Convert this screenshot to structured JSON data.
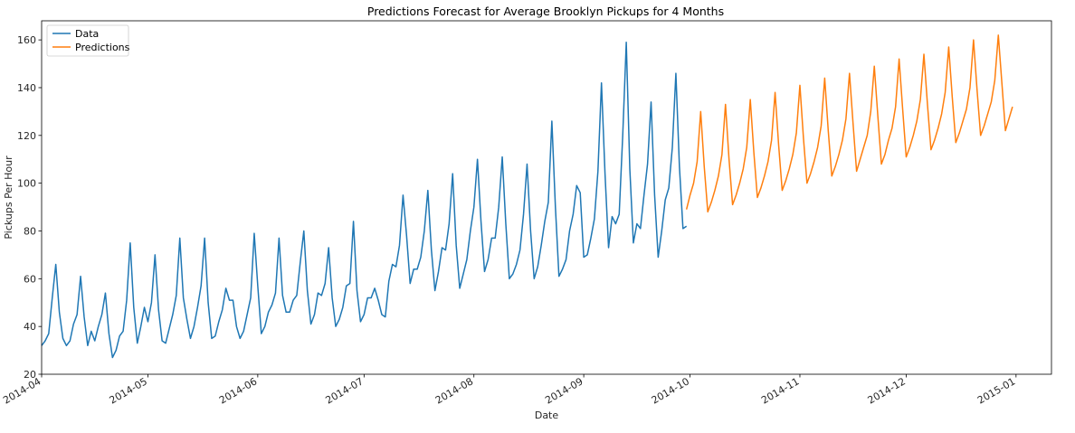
{
  "chart_data": {
    "type": "line",
    "title": "Predictions Forecast for Average Brooklyn Pickups for 4 Months",
    "xlabel": "Date",
    "ylabel": "Pickups Per Hour",
    "xlim": [
      "2014-04-01",
      "2015-01-11"
    ],
    "ylim": [
      20,
      168
    ],
    "yticks": [
      20,
      40,
      60,
      80,
      100,
      120,
      140,
      160
    ],
    "xticks": [
      "2014-04",
      "2014-05",
      "2014-06",
      "2014-07",
      "2014-08",
      "2014-09",
      "2014-10",
      "2014-11",
      "2014-12",
      "2015-01"
    ],
    "grid": false,
    "legend": "top-left",
    "series": [
      {
        "name": "Data",
        "color": "#1f77b4",
        "x_start": "2014-04-01",
        "x_step_days": 1,
        "values": [
          32,
          34,
          37,
          52,
          66,
          46,
          35,
          32,
          34,
          41,
          45,
          61,
          44,
          32,
          38,
          34,
          40,
          45,
          54,
          37,
          27,
          30,
          36,
          38,
          51,
          75,
          48,
          33,
          40,
          48,
          42,
          50,
          70,
          47,
          34,
          33,
          39,
          45,
          53,
          77,
          52,
          43,
          35,
          40,
          48,
          57,
          77,
          50,
          35,
          36,
          42,
          47,
          56,
          51,
          51,
          40,
          35,
          38,
          45,
          52,
          79,
          57,
          37,
          40,
          46,
          49,
          54,
          77,
          53,
          46,
          46,
          51,
          53,
          67,
          80,
          55,
          41,
          45,
          54,
          53,
          58,
          73,
          52,
          40,
          43,
          48,
          57,
          58,
          84,
          55,
          42,
          45,
          52,
          52,
          56,
          51,
          45,
          44,
          59,
          66,
          65,
          74,
          95,
          78,
          58,
          64,
          64,
          69,
          80,
          97,
          72,
          55,
          63,
          73,
          72,
          83,
          104,
          74,
          56,
          62,
          68,
          80,
          90,
          110,
          84,
          63,
          68,
          77,
          77,
          90,
          111,
          83,
          60,
          62,
          66,
          72,
          87,
          108,
          80,
          60,
          65,
          74,
          84,
          92,
          126,
          90,
          61,
          64,
          68,
          80,
          87,
          99,
          96,
          69,
          70,
          77,
          85,
          105,
          142,
          104,
          73,
          86,
          83,
          87,
          120,
          159,
          106,
          75,
          83,
          81,
          95,
          108,
          134,
          95,
          69,
          80,
          93,
          98,
          115,
          146,
          107,
          81,
          82
        ]
      },
      {
        "name": "Predictions",
        "color": "#ff7f0e",
        "x_start": "2014-09-30",
        "x_step_days": 1,
        "values": [
          89,
          95,
          100,
          109,
          130,
          107,
          88,
          92,
          97,
          103,
          112,
          133,
          110,
          91,
          95,
          100,
          106,
          115,
          135,
          113,
          94,
          98,
          103,
          109,
          118,
          138,
          116,
          97,
          101,
          106,
          112,
          121,
          141,
          119,
          100,
          104,
          109,
          115,
          124,
          144,
          122,
          103,
          107,
          112,
          118,
          127,
          146,
          125,
          105,
          110,
          115,
          120,
          130,
          149,
          128,
          108,
          112,
          118,
          123,
          132,
          152,
          131,
          111,
          115,
          120,
          126,
          135,
          154,
          133,
          114,
          118,
          123,
          129,
          138,
          157,
          136,
          117,
          121,
          126,
          131,
          140,
          160,
          139,
          120,
          124,
          129,
          134,
          143,
          162,
          142,
          122,
          127,
          132
        ]
      }
    ]
  }
}
